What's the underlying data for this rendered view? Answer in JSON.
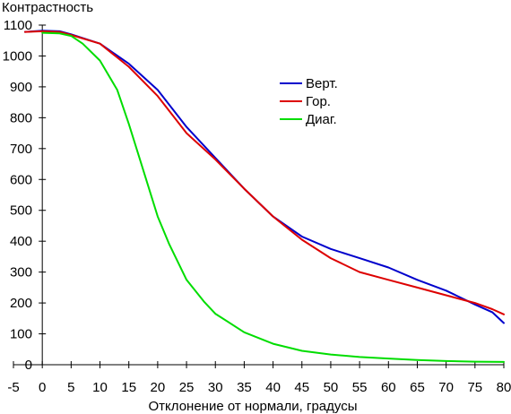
{
  "chart_data": {
    "type": "line",
    "title": "",
    "xlabel": "Отклонение от нормали, градусы",
    "ylabel": "Контрастность",
    "xlim": [
      -5,
      80
    ],
    "ylim": [
      0,
      1100
    ],
    "xticks": [
      -5,
      0,
      5,
      10,
      15,
      20,
      25,
      30,
      35,
      40,
      45,
      50,
      55,
      60,
      65,
      70,
      75,
      80
    ],
    "yticks": [
      0,
      100,
      200,
      300,
      400,
      500,
      600,
      700,
      800,
      900,
      1000,
      1100
    ],
    "grid": false,
    "legend_position": "top-right",
    "series": [
      {
        "name": "Верт.",
        "color": "#0000cc",
        "x": [
          -3,
          0,
          3,
          5,
          10,
          15,
          20,
          25,
          30,
          35,
          40,
          45,
          50,
          55,
          60,
          65,
          70,
          75,
          78,
          80
        ],
        "y": [
          1078,
          1082,
          1080,
          1070,
          1040,
          975,
          890,
          770,
          670,
          570,
          480,
          415,
          375,
          345,
          315,
          275,
          240,
          195,
          170,
          135
        ]
      },
      {
        "name": "Гор.",
        "color": "#dd0000",
        "x": [
          -3,
          0,
          3,
          5,
          10,
          15,
          20,
          25,
          30,
          35,
          40,
          45,
          50,
          55,
          60,
          65,
          70,
          75,
          78,
          80
        ],
        "y": [
          1078,
          1080,
          1078,
          1068,
          1040,
          965,
          870,
          750,
          665,
          570,
          480,
          405,
          345,
          300,
          275,
          250,
          225,
          200,
          180,
          163
        ]
      },
      {
        "name": "Диаг.",
        "color": "#00dd00",
        "x": [
          0,
          3,
          5,
          7,
          10,
          13,
          15,
          17,
          20,
          22,
          25,
          28,
          30,
          35,
          40,
          45,
          50,
          55,
          60,
          65,
          70,
          75,
          80
        ],
        "y": [
          1075,
          1073,
          1065,
          1040,
          985,
          890,
          780,
          660,
          480,
          390,
          275,
          205,
          165,
          105,
          68,
          45,
          33,
          25,
          20,
          15,
          12,
          10,
          9
        ]
      }
    ]
  }
}
